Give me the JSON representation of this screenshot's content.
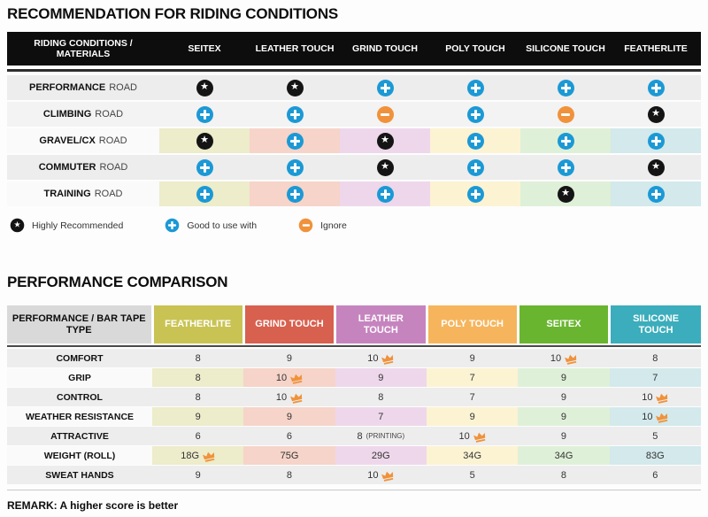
{
  "page": {
    "section1_title": "RECOMMENDATION FOR RIDING CONDITIONS",
    "section2_title": "PERFORMANCE COMPARISON",
    "remark": "REMARK: A higher score is better"
  },
  "theme": {
    "star_color": "#141414",
    "plus_color": "#1b99d5",
    "minus_color": "#f0923b",
    "crown_color": "#f0923b",
    "gray_row": "#ededed",
    "column_tints": [
      "#edeccb",
      "#f6d4c9",
      "#eed7eb",
      "#fcf3d3",
      "#dff0d8",
      "#d3e9eb"
    ]
  },
  "riding_table": {
    "header": [
      "RIDING CONDITIONS / MATERIALS",
      "SEITEX",
      "LEATHER TOUCH",
      "GRIND TOUCH",
      "POLY TOUCH",
      "SILICONE TOUCH",
      "FEATHERLITE"
    ],
    "rows": [
      {
        "label_bold": "PERFORMANCE",
        "label_rest": "ROAD",
        "tinted": false,
        "cells": [
          "star",
          "star",
          "plus",
          "plus",
          "plus",
          "plus"
        ]
      },
      {
        "label_bold": "CLIMBING",
        "label_rest": "ROAD",
        "tinted": false,
        "cells": [
          "plus",
          "plus",
          "minus",
          "plus",
          "minus",
          "star"
        ]
      },
      {
        "label_bold": "GRAVEL/CX",
        "label_rest": "ROAD",
        "tinted": true,
        "cells": [
          "star",
          "plus",
          "star",
          "plus",
          "plus",
          "plus"
        ]
      },
      {
        "label_bold": "COMMUTER",
        "label_rest": "ROAD",
        "tinted": false,
        "cells": [
          "plus",
          "plus",
          "star",
          "plus",
          "plus",
          "star"
        ]
      },
      {
        "label_bold": "TRAINING",
        "label_rest": "ROAD",
        "tinted": true,
        "cells": [
          "plus",
          "plus",
          "plus",
          "plus",
          "star",
          "plus"
        ]
      }
    ]
  },
  "legend": [
    {
      "icon": "star",
      "label": "Highly Recommended"
    },
    {
      "icon": "plus",
      "label": "Good to use with"
    },
    {
      "icon": "minus",
      "label": "Ignore"
    }
  ],
  "performance_table": {
    "header_label": "PERFORMANCE / BAR TAPE TYPE",
    "columns": [
      {
        "label": "FEATHERLITE",
        "color": "#c9c353"
      },
      {
        "label": "GRIND TOUCH",
        "color": "#d8604f"
      },
      {
        "label": "LEATHER TOUCH",
        "color": "#c684bf"
      },
      {
        "label": "POLY TOUCH",
        "color": "#f6b55d"
      },
      {
        "label": "SEITEX",
        "color": "#69b52f"
      },
      {
        "label": "SILICONE TOUCH",
        "color": "#3badbc"
      }
    ],
    "rows": [
      {
        "label": "COMFORT",
        "tinted": false,
        "values": [
          {
            "v": "8"
          },
          {
            "v": "9"
          },
          {
            "v": "10",
            "crown": true
          },
          {
            "v": "9"
          },
          {
            "v": "10",
            "crown": true
          },
          {
            "v": "8"
          }
        ]
      },
      {
        "label": "GRIP",
        "tinted": true,
        "values": [
          {
            "v": "8"
          },
          {
            "v": "10",
            "crown": true
          },
          {
            "v": "9"
          },
          {
            "v": "7"
          },
          {
            "v": "9"
          },
          {
            "v": "7"
          }
        ]
      },
      {
        "label": "CONTROL",
        "tinted": false,
        "values": [
          {
            "v": "8"
          },
          {
            "v": "10",
            "crown": true
          },
          {
            "v": "8"
          },
          {
            "v": "7"
          },
          {
            "v": "9"
          },
          {
            "v": "10",
            "crown": true
          }
        ]
      },
      {
        "label": "WEATHER RESISTANCE",
        "tinted": true,
        "values": [
          {
            "v": "9"
          },
          {
            "v": "9"
          },
          {
            "v": "7"
          },
          {
            "v": "9"
          },
          {
            "v": "9"
          },
          {
            "v": "10",
            "crown": true
          }
        ]
      },
      {
        "label": "ATTRACTIVE",
        "tinted": false,
        "values": [
          {
            "v": "6"
          },
          {
            "v": "6"
          },
          {
            "v": "8",
            "suffix": "(PRINTING)"
          },
          {
            "v": "10",
            "crown": true
          },
          {
            "v": "9"
          },
          {
            "v": "5"
          }
        ]
      },
      {
        "label": "WEIGHT (ROLL)",
        "tinted": true,
        "values": [
          {
            "v": "18G",
            "crown": true
          },
          {
            "v": "75G"
          },
          {
            "v": "29G"
          },
          {
            "v": "34G"
          },
          {
            "v": "34G"
          },
          {
            "v": "83G"
          }
        ]
      },
      {
        "label": "SWEAT HANDS",
        "tinted": false,
        "values": [
          {
            "v": "9"
          },
          {
            "v": "8"
          },
          {
            "v": "10",
            "crown": true
          },
          {
            "v": "5"
          },
          {
            "v": "8"
          },
          {
            "v": "6"
          }
        ]
      }
    ]
  }
}
